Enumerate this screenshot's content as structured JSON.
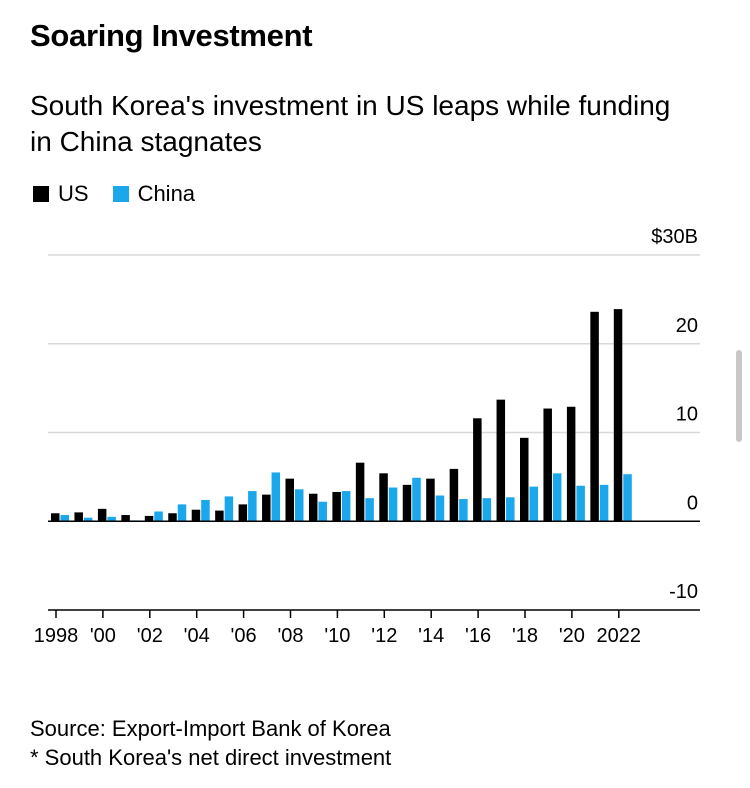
{
  "header": {
    "title": "Soaring Investment",
    "subtitle": "South Korea's investment in US leaps while funding in China stagnates"
  },
  "footer": {
    "source": "Source: Export-Import Bank of Korea",
    "note": "* South Korea's net direct investment"
  },
  "colors": {
    "us": "#000000",
    "china": "#1aa7ec",
    "gridline": "#d9d9d9",
    "axis": "#000000"
  },
  "chart_data": {
    "type": "bar",
    "title": "Soaring Investment",
    "subtitle": "South Korea's investment in US leaps while funding in China stagnates",
    "xlabel": "",
    "ylabel": "",
    "unit": "USD billions",
    "ylim": [
      -10,
      30
    ],
    "y_ticks": [
      30,
      20,
      10,
      0,
      -10
    ],
    "y_tick_labels": [
      "$30B",
      "20",
      "10",
      "0",
      "-10"
    ],
    "grid": true,
    "legend_position": "top-left",
    "categories": [
      "1998",
      "1999",
      "2000",
      "2001",
      "2002",
      "2003",
      "2004",
      "2005",
      "2006",
      "2007",
      "2008",
      "2009",
      "2010",
      "2011",
      "2012",
      "2013",
      "2014",
      "2015",
      "2016",
      "2017",
      "2018",
      "2019",
      "2020",
      "2021",
      "2022"
    ],
    "x_tick_labels": [
      "1998",
      "'00",
      "'02",
      "'04",
      "'06",
      "'08",
      "'10",
      "'12",
      "'14",
      "'16",
      "'18",
      "'20",
      "2022"
    ],
    "x_tick_categories": [
      "1998",
      "2000",
      "2002",
      "2004",
      "2006",
      "2008",
      "2010",
      "2012",
      "2014",
      "2016",
      "2018",
      "2020",
      "2022"
    ],
    "series": [
      {
        "name": "US",
        "color": "#000000",
        "values": [
          0.9,
          1.0,
          1.4,
          0.7,
          0.6,
          0.9,
          1.3,
          1.2,
          1.9,
          3.0,
          4.8,
          3.1,
          3.3,
          6.6,
          5.4,
          4.1,
          4.8,
          5.9,
          11.6,
          13.7,
          9.4,
          12.7,
          12.9,
          23.6,
          23.9
        ]
      },
      {
        "name": "China",
        "color": "#1aa7ec",
        "values": [
          0.7,
          0.4,
          0.5,
          0.1,
          1.1,
          1.9,
          2.4,
          2.8,
          3.4,
          5.5,
          3.6,
          2.2,
          3.4,
          2.6,
          3.8,
          4.9,
          2.9,
          2.5,
          2.6,
          2.7,
          3.9,
          5.4,
          4.0,
          4.1,
          5.3
        ]
      }
    ]
  }
}
